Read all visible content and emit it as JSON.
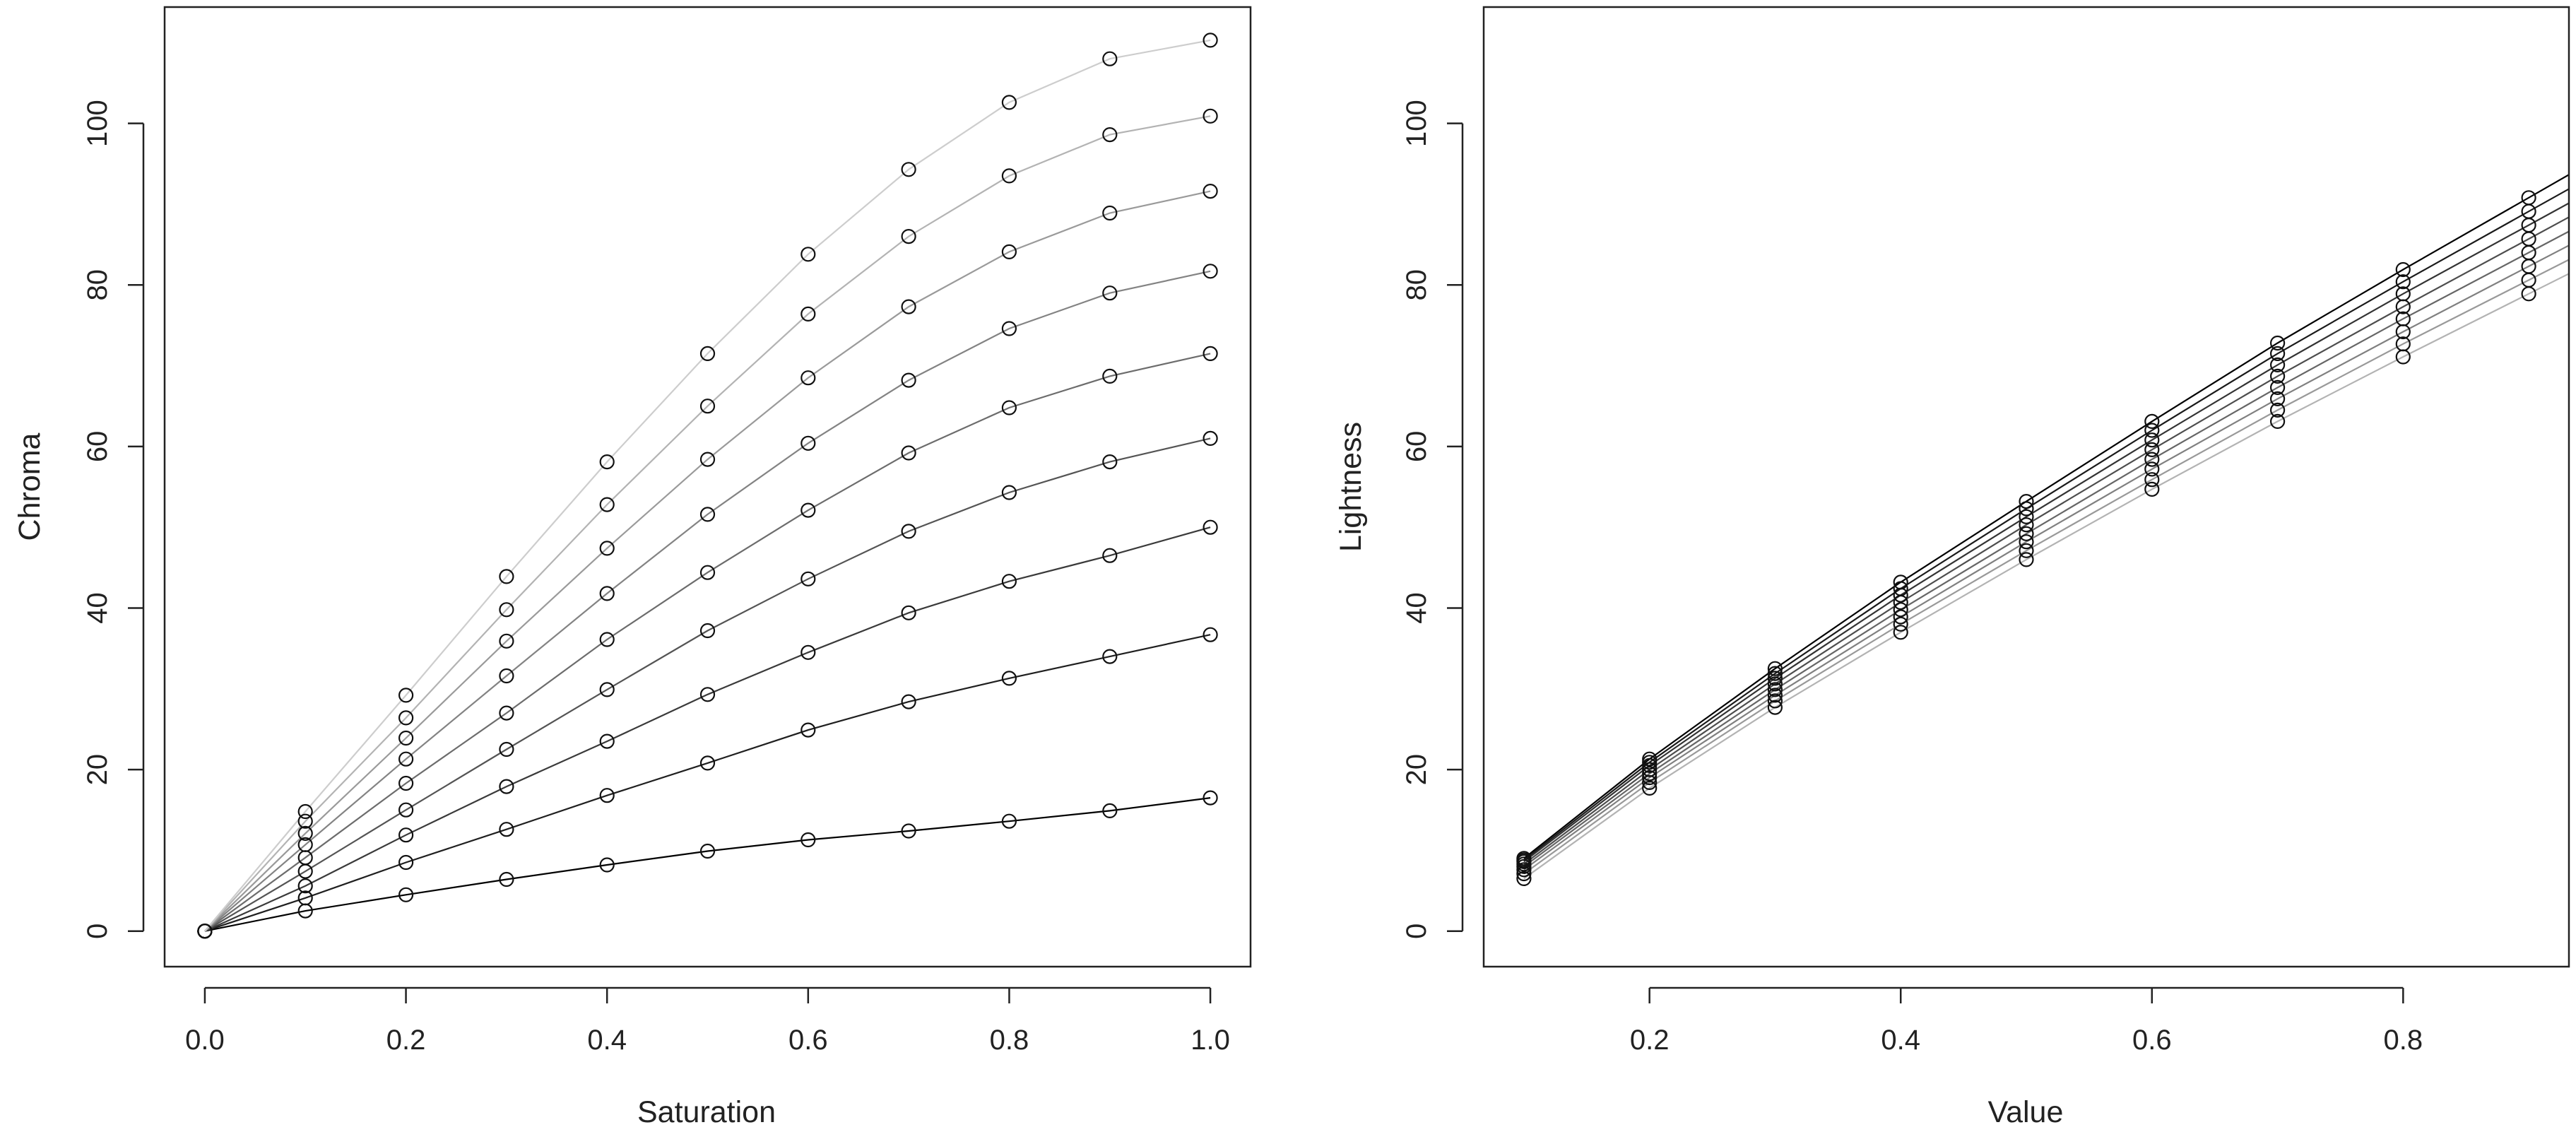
{
  "chart_data": [
    {
      "type": "line",
      "xlabel": "Saturation",
      "ylabel": "Chroma",
      "xlim": [
        -0.04,
        1.04
      ],
      "ylim": [
        -4.4,
        114.4
      ],
      "xticks": [
        "0.0",
        "0.2",
        "0.4",
        "0.6",
        "0.8",
        "1.0"
      ],
      "yticks": [
        "0",
        "20",
        "40",
        "60",
        "80",
        "100"
      ],
      "grid": false,
      "x": [
        0,
        0.1,
        0.2,
        0.3,
        0.4,
        0.5,
        0.6,
        0.7,
        0.8,
        0.9,
        1.0
      ],
      "series": [
        {
          "color": "#000000",
          "values": [
            0,
            2.5,
            4.5,
            6.4,
            8.2,
            9.9,
            11.3,
            12.4,
            13.6,
            14.9,
            16.5
          ]
        },
        {
          "color": "#1f1f1f",
          "values": [
            0,
            4.1,
            8.5,
            12.6,
            16.8,
            20.8,
            24.9,
            28.4,
            31.3,
            34.0,
            36.7
          ]
        },
        {
          "color": "#3a3a3a",
          "values": [
            0,
            5.6,
            11.9,
            17.9,
            23.5,
            29.3,
            34.5,
            39.4,
            43.3,
            46.5,
            50.0
          ]
        },
        {
          "color": "#545454",
          "values": [
            0,
            7.4,
            15.0,
            22.5,
            29.9,
            37.2,
            43.6,
            49.5,
            54.3,
            58.1,
            61.0
          ]
        },
        {
          "color": "#6c6c6c",
          "values": [
            0,
            9.1,
            18.3,
            27.0,
            36.1,
            44.4,
            52.1,
            59.2,
            64.8,
            68.7,
            71.5
          ]
        },
        {
          "color": "#838383",
          "values": [
            0,
            10.7,
            21.3,
            31.6,
            41.8,
            51.6,
            60.4,
            68.2,
            74.6,
            79.0,
            81.7
          ]
        },
        {
          "color": "#9a9a9a",
          "values": [
            0,
            12.1,
            23.9,
            35.9,
            47.4,
            58.4,
            68.5,
            77.3,
            84.1,
            88.9,
            91.6
          ]
        },
        {
          "color": "#b3b3b3",
          "values": [
            0,
            13.6,
            26.4,
            39.8,
            52.8,
            65.0,
            76.4,
            86.0,
            93.5,
            98.6,
            100.9
          ]
        },
        {
          "color": "#cdcdcd",
          "values": [
            0,
            14.8,
            29.2,
            43.9,
            58.1,
            71.5,
            83.8,
            94.3,
            102.6,
            108.0,
            110.3
          ]
        }
      ]
    },
    {
      "type": "line",
      "xlabel": "Value",
      "ylabel": "Lightness",
      "xlim": [
        0.068,
        0.932
      ],
      "ylim": [
        -4.4,
        114.4
      ],
      "xticks": [
        "0.2",
        "0.4",
        "0.6",
        "0.8"
      ],
      "yticks": [
        "0",
        "20",
        "40",
        "60",
        "80",
        "100"
      ],
      "grid": false,
      "x": [
        0.1,
        0.2,
        0.3,
        0.4,
        0.5,
        0.6,
        0.7,
        0.8,
        0.9
      ],
      "series": [
        {
          "color": "#000000",
          "values": [
            9.0,
            21.3,
            32.5,
            43.2,
            53.2,
            63.1,
            72.8,
            81.9,
            90.8
          ]
        },
        {
          "color": "#1a1a1a",
          "values": [
            8.8,
            20.9,
            31.9,
            42.4,
            52.3,
            62.0,
            71.5,
            80.4,
            89.1
          ]
        },
        {
          "color": "#333333",
          "values": [
            8.6,
            20.5,
            31.3,
            41.6,
            51.3,
            60.8,
            70.1,
            78.9,
            87.4
          ]
        },
        {
          "color": "#4d4d4d",
          "values": [
            8.3,
            20.0,
            30.6,
            40.7,
            50.3,
            59.6,
            68.7,
            77.3,
            85.7
          ]
        },
        {
          "color": "#666666",
          "values": [
            8.0,
            19.5,
            29.9,
            39.8,
            49.2,
            58.4,
            67.3,
            75.8,
            84.0
          ]
        },
        {
          "color": "#808080",
          "values": [
            7.6,
            19.0,
            29.2,
            38.9,
            48.2,
            57.2,
            65.9,
            74.2,
            82.3
          ]
        },
        {
          "color": "#999999",
          "values": [
            7.1,
            18.4,
            28.5,
            38.0,
            47.1,
            55.9,
            64.5,
            72.7,
            80.6
          ]
        },
        {
          "color": "#b3b3b3",
          "values": [
            6.5,
            17.7,
            27.7,
            37.0,
            46.0,
            54.7,
            63.1,
            71.1,
            78.9
          ]
        }
      ]
    }
  ]
}
